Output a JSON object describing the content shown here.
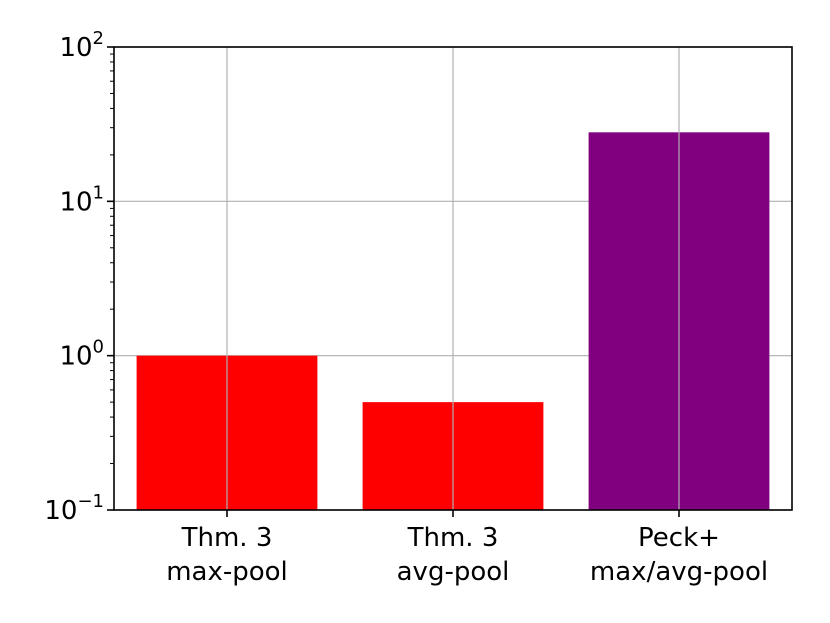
{
  "chart_data": {
    "type": "bar",
    "yscale": "log",
    "ylim": [
      0.1,
      100
    ],
    "grid": true,
    "title": "",
    "xlabel": "",
    "ylabel": "",
    "categories": [
      {
        "line1": "Thm. 3",
        "line2": "max-pool"
      },
      {
        "line1": "Thm. 3",
        "line2": "avg-pool"
      },
      {
        "line1": "Peck+",
        "line2": "max/avg-pool"
      }
    ],
    "values": [
      1.0,
      0.5,
      28
    ],
    "colors": [
      "#ff0000",
      "#ff0000",
      "#800080"
    ],
    "y_ticks": [
      {
        "value": 0.1,
        "base": "10",
        "exp": "−1"
      },
      {
        "value": 1,
        "base": "10",
        "exp": "0"
      },
      {
        "value": 10,
        "base": "10",
        "exp": "1"
      },
      {
        "value": 100,
        "base": "10",
        "exp": "2"
      }
    ]
  }
}
